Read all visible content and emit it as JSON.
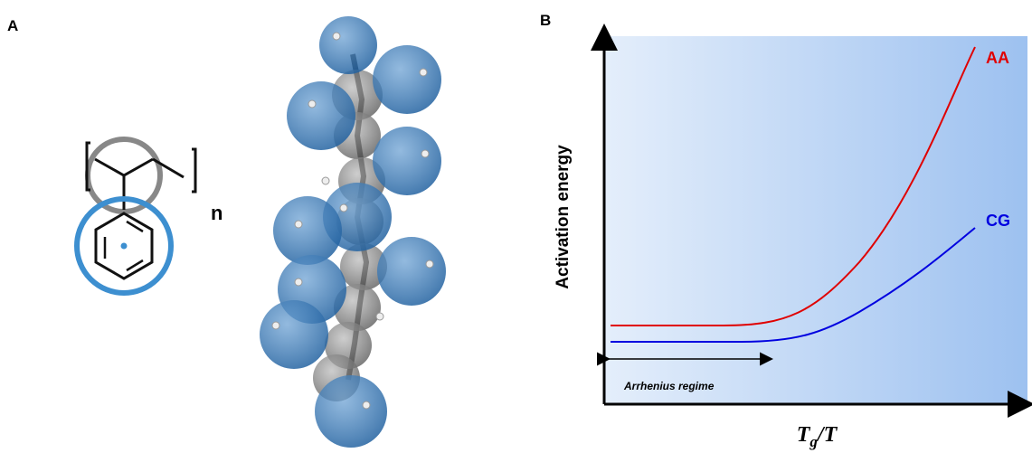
{
  "panel_a": {
    "label": "A",
    "repeat_subscript": "n"
  },
  "panel_b": {
    "label": "B",
    "y_label": "Activation energy",
    "x_label": {
      "base": "T",
      "subscript": "g",
      "rest": "/T"
    },
    "curves": [
      {
        "name": "AA",
        "color": "#e00000"
      },
      {
        "name": "CG",
        "color": "#0000e0"
      }
    ],
    "annotation": "Arrhenius regime"
  }
}
